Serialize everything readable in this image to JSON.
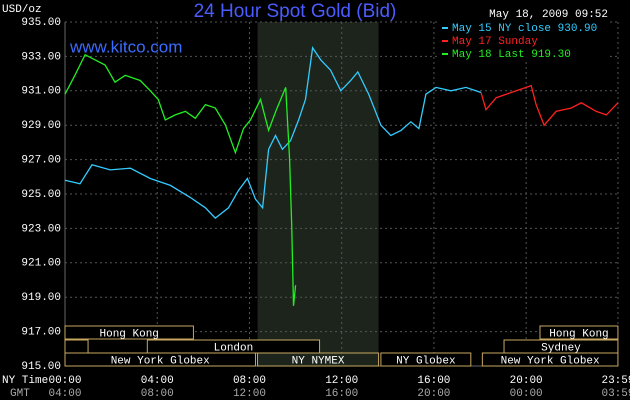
{
  "chart_data": {
    "type": "line",
    "title": "24 Hour Spot Gold (Bid)",
    "unit_label": "USD/oz",
    "timestamp": "May 18, 2009 09:52",
    "watermark": "www.kitco.com",
    "x_axis_label": "NY Time",
    "x2_axis_label": "GMT",
    "xlim": [
      0,
      23.983
    ],
    "xticks": [
      {
        "value": 0,
        "label": "00:00"
      },
      {
        "value": 4,
        "label": "04:00"
      },
      {
        "value": 8,
        "label": "08:00"
      },
      {
        "value": 12,
        "label": "12:00"
      },
      {
        "value": 16,
        "label": "16:00"
      },
      {
        "value": 20,
        "label": "20:00"
      },
      {
        "value": 23.983,
        "label": "23:59"
      }
    ],
    "gmt_labels": [
      "04:00",
      "08:00",
      "12:00",
      "16:00",
      "20:00",
      "00:00",
      "03:59"
    ],
    "ylim": [
      915,
      935
    ],
    "yticks": [
      {
        "value": 915,
        "label": "915.00"
      },
      {
        "value": 917,
        "label": "917.00"
      },
      {
        "value": 919,
        "label": "919.00"
      },
      {
        "value": 921,
        "label": "921.00"
      },
      {
        "value": 923,
        "label": "923.00"
      },
      {
        "value": 925,
        "label": "925.00"
      },
      {
        "value": 927,
        "label": "927.00"
      },
      {
        "value": 929,
        "label": "929.00"
      },
      {
        "value": 931,
        "label": "931.00"
      },
      {
        "value": 933,
        "label": "933.00"
      },
      {
        "value": 935,
        "label": "935.00"
      }
    ],
    "grid": true,
    "legend": "top-right",
    "series": [
      {
        "name": "May 15 NY close 930.90",
        "color": "#33ccff",
        "x": [
          0,
          0.65,
          1.17,
          1.96,
          2.83,
          3.7,
          4.57,
          5.43,
          6.09,
          6.52,
          7.09,
          7.52,
          7.91,
          8.26,
          8.57,
          8.83,
          9.13,
          9.43,
          9.78,
          10.13,
          10.43,
          10.74,
          11.09,
          11.52,
          11.96,
          12.39,
          12.7,
          13.17,
          13.7,
          14.13,
          14.57,
          15.0,
          15.35,
          15.65,
          16.09,
          16.74,
          17.39,
          18.04
        ],
        "values": [
          925.8,
          925.6,
          926.7,
          926.4,
          926.5,
          925.9,
          925.5,
          924.8,
          924.2,
          923.6,
          924.2,
          925.2,
          925.9,
          924.7,
          924.2,
          927.6,
          928.4,
          927.6,
          928.1,
          929.3,
          930.5,
          933.5,
          932.8,
          932.2,
          931.0,
          931.6,
          932.1,
          930.8,
          929.0,
          928.4,
          928.7,
          929.2,
          928.8,
          930.8,
          931.2,
          931.0,
          931.2,
          930.9
        ]
      },
      {
        "name": "May 17 Sunday",
        "color": "#ff2020",
        "x": [
          18.04,
          18.26,
          18.7,
          19.35,
          20.0,
          20.22,
          20.43,
          20.78,
          21.3,
          21.96,
          22.39,
          23.04,
          23.48,
          23.98
        ],
        "values": [
          930.9,
          929.9,
          930.6,
          930.9,
          931.2,
          931.3,
          930.2,
          929.0,
          929.8,
          930.0,
          930.3,
          929.8,
          929.6,
          930.3
        ]
      },
      {
        "name": "May 18 Last 919.30",
        "color": "#22ee22",
        "x": [
          0,
          0.43,
          0.87,
          1.3,
          1.74,
          2.17,
          2.61,
          3.26,
          3.7,
          4.04,
          4.35,
          4.78,
          5.22,
          5.65,
          6.09,
          6.52,
          6.96,
          7.39,
          7.74,
          8.04,
          8.48,
          8.83,
          9.17,
          9.57,
          9.74,
          9.83,
          9.91,
          10.0
        ],
        "values": [
          930.8,
          931.9,
          933.1,
          932.8,
          932.5,
          931.5,
          931.9,
          931.6,
          931.0,
          930.5,
          929.3,
          929.6,
          929.8,
          929.4,
          930.2,
          930.0,
          929.0,
          927.4,
          928.8,
          929.3,
          930.5,
          928.7,
          929.9,
          931.2,
          927.0,
          923.2,
          918.5,
          919.7
        ]
      }
    ],
    "sessions": [
      {
        "row": 0,
        "label": "Hong Kong",
        "start": 0,
        "end": 5.57
      },
      {
        "row": 0,
        "label": "Hong Kong",
        "start": 20.6,
        "end": 23.98
      },
      {
        "row": 1,
        "label": null,
        "start": 0,
        "end": 1.0
      },
      {
        "row": 1,
        "label": "London",
        "start": 3.57,
        "end": 11.04
      },
      {
        "row": 1,
        "label": "Sydney",
        "start": 19.04,
        "end": 23.98
      },
      {
        "row": 2,
        "label": "New York Globex",
        "start": 0,
        "end": 8.26
      },
      {
        "row": 2,
        "label": "NY NYMEX",
        "start": 8.35,
        "end": 13.6,
        "highlight": true
      },
      {
        "row": 2,
        "label": "NY Globex",
        "start": 13.7,
        "end": 17.6
      },
      {
        "row": 2,
        "label": "New York Globex",
        "start": 18.1,
        "end": 23.98
      }
    ]
  }
}
